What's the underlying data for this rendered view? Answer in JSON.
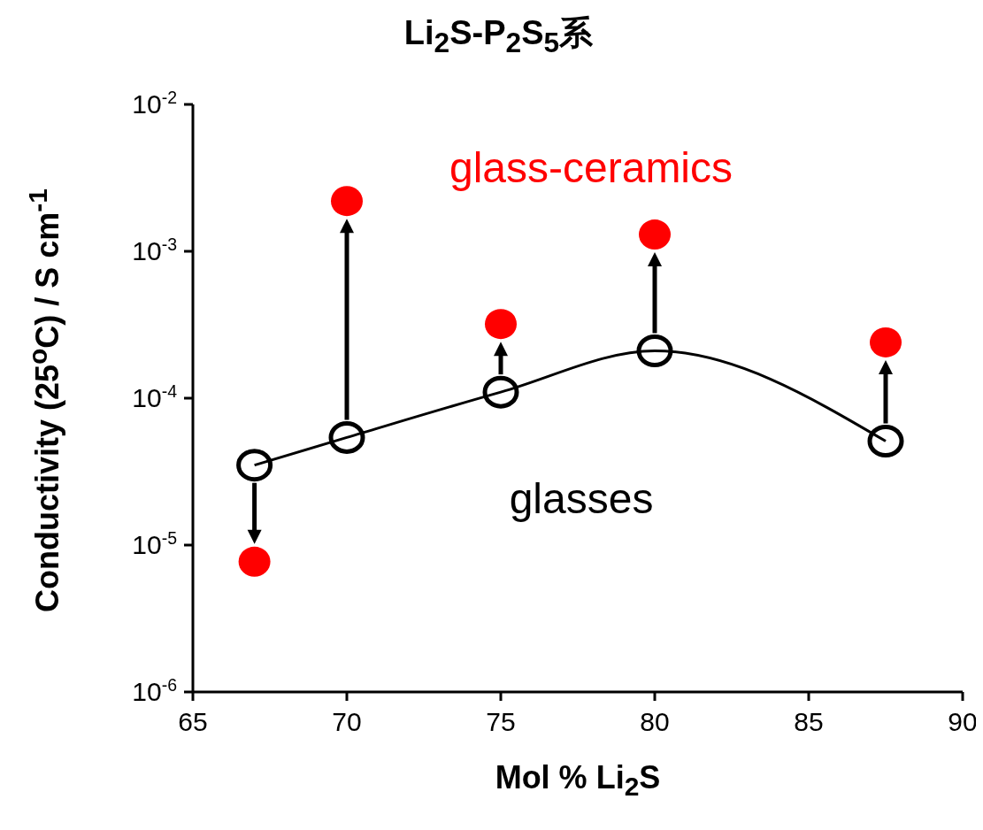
{
  "chart_data": {
    "type": "line",
    "title": "Li$_{2}$S-P$_{2}$S$_{5}$系",
    "xlabel": "Mol %  Li$_{2}$S",
    "ylabel": "Conductivity (25$^{o}$C) / S cm$^{-1}$",
    "x": [
      67,
      70,
      75,
      80,
      87.5
    ],
    "series": [
      {
        "name": "glasses",
        "color": "#000000",
        "values": [
          3.5e-05,
          5.4e-05,
          0.00011,
          0.00021,
          5.1e-05
        ]
      },
      {
        "name": "glass-ceramics",
        "type": "scatter",
        "color": "#ff0000",
        "values": [
          7.7e-06,
          0.0022,
          0.00032,
          0.0013,
          0.00024
        ]
      }
    ],
    "xlim": [
      65,
      90
    ],
    "xticks": [
      65,
      70,
      75,
      80,
      85,
      90
    ],
    "ylim": [
      1e-06,
      0.01
    ],
    "yticks": [
      {
        "value": 1e-06,
        "label": "10$^{-6}$"
      },
      {
        "value": 1e-05,
        "label": "10$^{-5}$"
      },
      {
        "value": 0.0001,
        "label": "10$^{-4}$"
      },
      {
        "value": 0.001,
        "label": "10$^{-3}$"
      },
      {
        "value": 0.01,
        "label": "10$^{-2}$"
      }
    ],
    "log": "y",
    "legend": false,
    "marker": "circle",
    "line_style": "solid"
  }
}
